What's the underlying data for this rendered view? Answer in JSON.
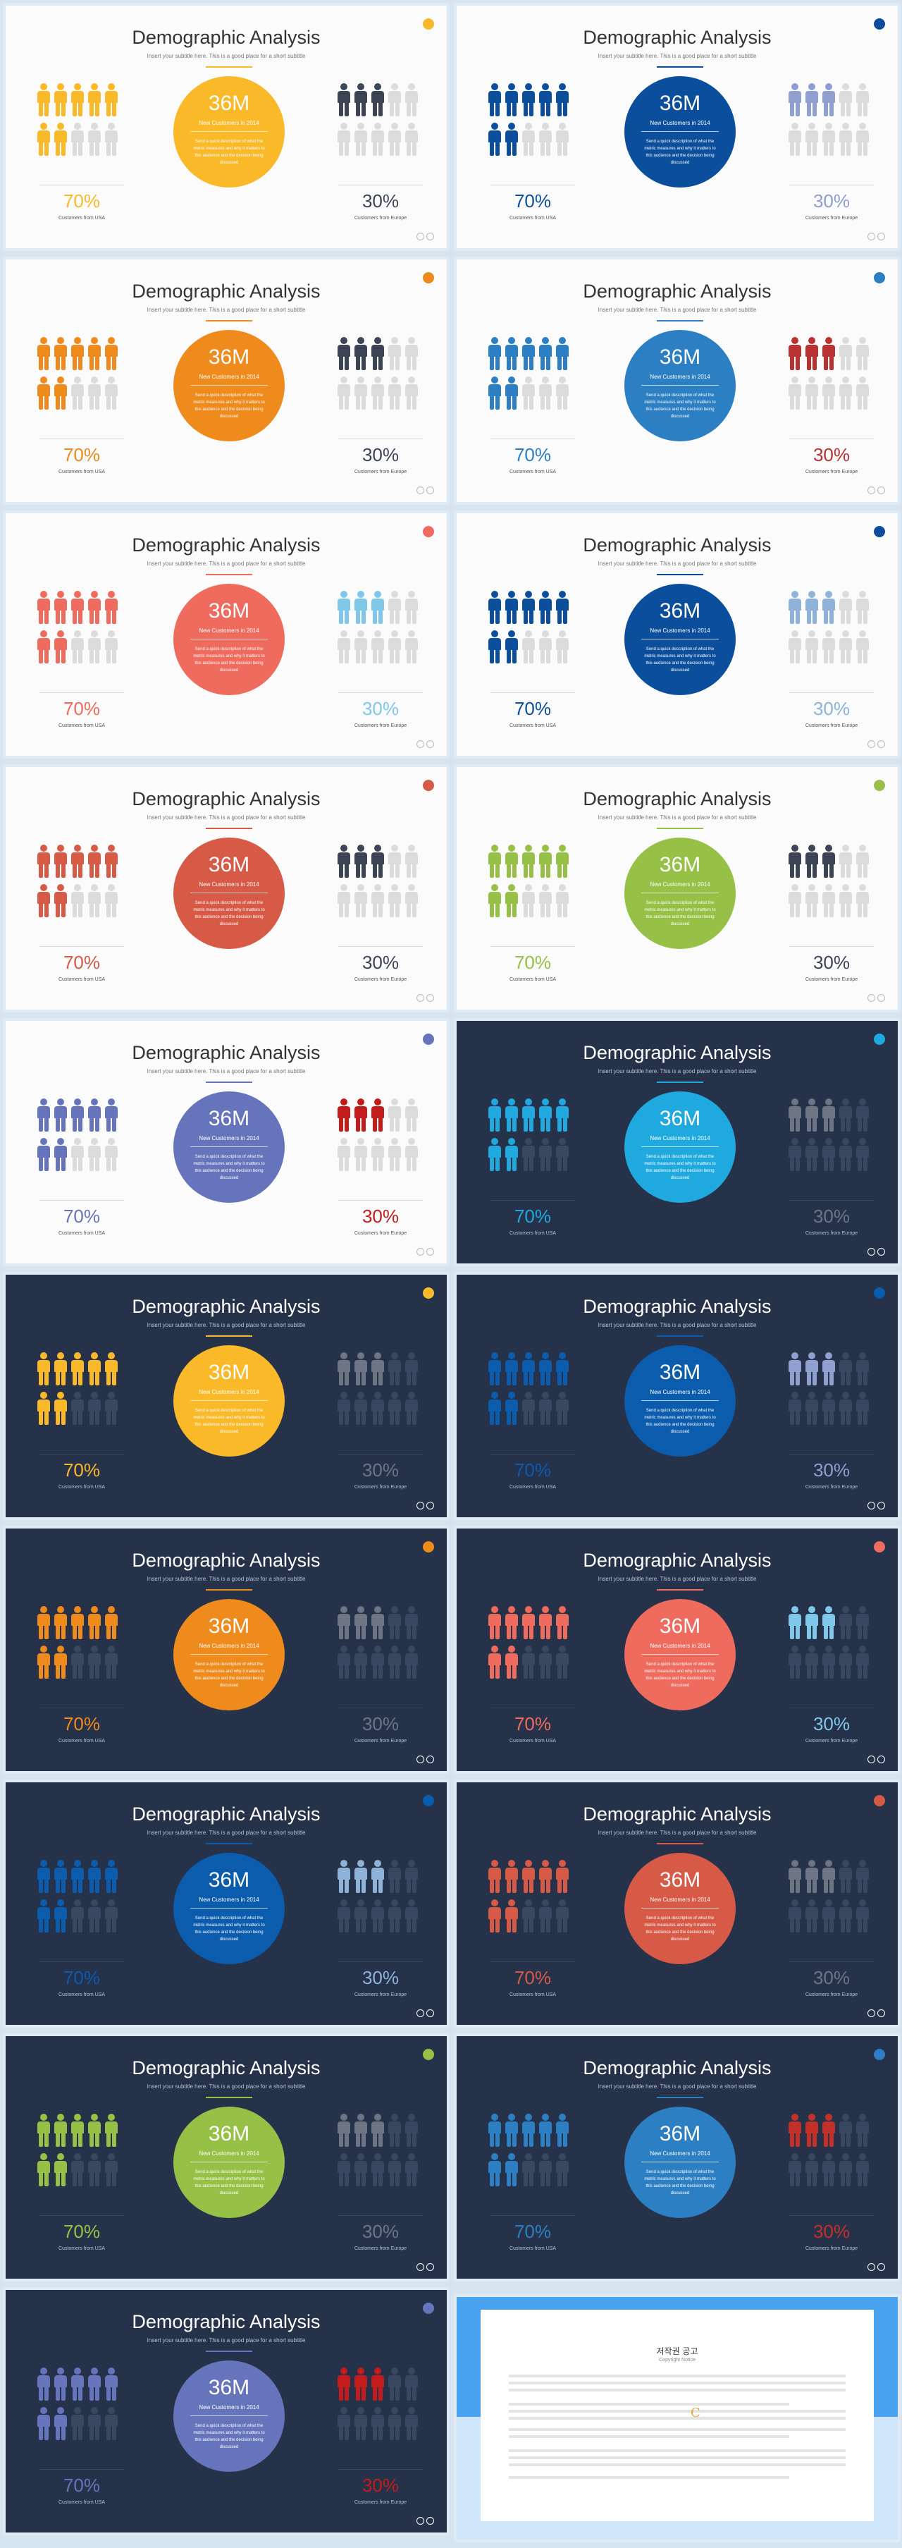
{
  "slide": {
    "title": "Demographic Analysis",
    "subtitle": "Insert your subtitle here. This is a good place for a short subtitle",
    "big_number": "36M",
    "new_customers": "New Customers in 2014",
    "circle_text": "Send a quick description of what the metric measures and why it matters to this audience and the decision being discussed",
    "left_percent": "70%",
    "left_caption": "Customers from USA",
    "right_percent": "30%",
    "right_caption": "Customers from Europe"
  },
  "slides": [
    {
      "theme": "light",
      "accent": "#f9b928",
      "right": "#3c4456",
      "left_fill": 7,
      "right_fill": 3
    },
    {
      "theme": "light",
      "accent": "#0b4f9c",
      "right": "#8e9fd0",
      "left_fill": 7,
      "right_fill": 3
    },
    {
      "theme": "light",
      "accent": "#ef8a1c",
      "right": "#3c4456",
      "left_fill": 7,
      "right_fill": 3
    },
    {
      "theme": "light",
      "accent": "#2b7fc2",
      "right": "#b8322f",
      "left_fill": 7,
      "right_fill": 3
    },
    {
      "theme": "light",
      "accent": "#ef6b5d",
      "right": "#7fc8ea",
      "left_fill": 7,
      "right_fill": 3
    },
    {
      "theme": "light",
      "accent": "#0b4f9c",
      "right": "#8eb2d8",
      "left_fill": 7,
      "right_fill": 3
    },
    {
      "theme": "light",
      "accent": "#d75a47",
      "right": "#3c4456",
      "left_fill": 7,
      "right_fill": 3
    },
    {
      "theme": "light",
      "accent": "#97c146",
      "right": "#3c4456",
      "left_fill": 7,
      "right_fill": 3
    },
    {
      "theme": "light",
      "accent": "#6674bb",
      "right": "#c21c1c",
      "left_fill": 7,
      "right_fill": 3
    },
    {
      "theme": "dark",
      "accent": "#1fa9df",
      "right": "#6d7584",
      "left_fill": 7,
      "right_fill": 3
    },
    {
      "theme": "dark",
      "accent": "#f9b928",
      "right": "#6d7584",
      "left_fill": 7,
      "right_fill": 3
    },
    {
      "theme": "dark",
      "accent": "#0b5cad",
      "right": "#8e9fd0",
      "left_fill": 7,
      "right_fill": 3
    },
    {
      "theme": "dark",
      "accent": "#ef8a1c",
      "right": "#6d7584",
      "left_fill": 7,
      "right_fill": 3
    },
    {
      "theme": "dark",
      "accent": "#ef6b5d",
      "right": "#7fc8ea",
      "left_fill": 7,
      "right_fill": 3
    },
    {
      "theme": "dark",
      "accent": "#0b5cad",
      "right": "#8eb2d8",
      "left_fill": 7,
      "right_fill": 3
    },
    {
      "theme": "dark",
      "accent": "#d75a47",
      "right": "#6d7584",
      "left_fill": 7,
      "right_fill": 3
    },
    {
      "theme": "dark",
      "accent": "#97c146",
      "right": "#6d7584",
      "left_fill": 7,
      "right_fill": 3
    },
    {
      "theme": "dark",
      "accent": "#2b7fc2",
      "right": "#c2302a",
      "left_fill": 7,
      "right_fill": 3
    },
    {
      "theme": "dark",
      "accent": "#6674bb",
      "right": "#c21c1c",
      "left_fill": 7,
      "right_fill": 3
    }
  ],
  "copyright": {
    "title": "저작권 공고",
    "subtitle": "Copyright Notice"
  },
  "icons": {
    "person": "person-icon",
    "nav_prev": "chevron-left-icon",
    "nav_next": "chevron-right-icon",
    "logo": "logo-icon"
  }
}
